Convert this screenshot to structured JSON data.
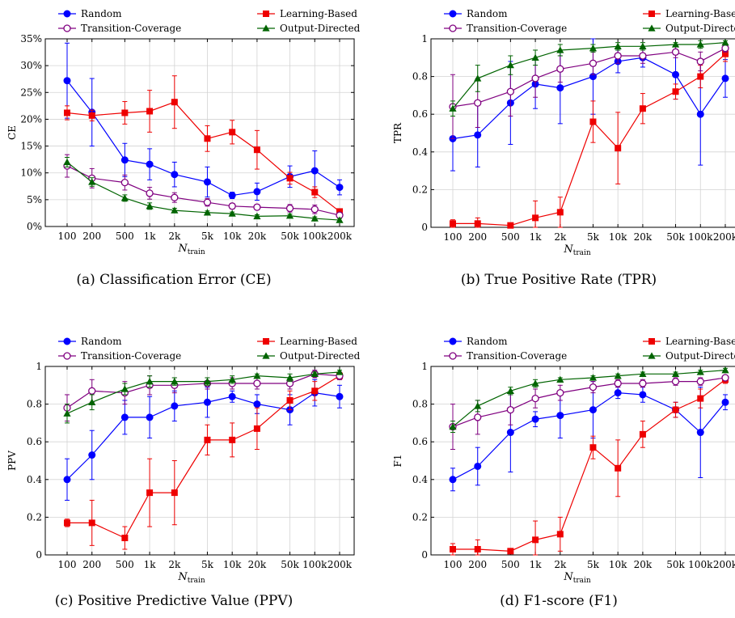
{
  "figure": {
    "x_axis_label_main": "N",
    "x_axis_label_sub": "train",
    "legend_labels": [
      "Random",
      "Learning-Based",
      "Transition-Coverage",
      "Output-Directed"
    ]
  },
  "chart_data": [
    {
      "type": "line",
      "panel": "a",
      "caption": "(a) Classification Error (CE)",
      "ylabel": "CE",
      "categories": [
        "100",
        "200",
        "500",
        "1k",
        "2k",
        "5k",
        "10k",
        "20k",
        "50k",
        "100k",
        "200k"
      ],
      "x": [
        100,
        200,
        500,
        1000,
        2000,
        5000,
        10000,
        20000,
        50000,
        100000,
        200000
      ],
      "x_scale": "log",
      "ylim": [
        0,
        35
      ],
      "ytick_labels": [
        "0%",
        "5%",
        "10%",
        "15%",
        "20%",
        "25%",
        "30%",
        "35%"
      ],
      "yticks": [
        0,
        5,
        10,
        15,
        20,
        25,
        30,
        35
      ],
      "grid": true,
      "legend_position": "above",
      "series": [
        {
          "name": "Random",
          "color": "#0000ff",
          "marker": "circle",
          "values": [
            27.2,
            21.3,
            12.4,
            11.6,
            9.7,
            8.3,
            5.8,
            6.5,
            9.3,
            10.4,
            7.3
          ],
          "error": [
            7.0,
            6.3,
            3.1,
            2.9,
            2.3,
            2.8,
            0.6,
            1.6,
            2.0,
            3.7,
            1.4
          ]
        },
        {
          "name": "Learning-Based",
          "color": "#ee0000",
          "marker": "square",
          "values": [
            21.2,
            20.7,
            21.2,
            21.5,
            23.2,
            16.4,
            17.6,
            14.3,
            9.0,
            6.4,
            2.8
          ],
          "error": [
            1.3,
            1.0,
            2.1,
            3.9,
            4.9,
            2.4,
            2.2,
            3.6,
            1.1,
            1.0,
            0.5
          ]
        },
        {
          "name": "Transition-Coverage",
          "color": "#800080",
          "marker": "open-circle",
          "values": [
            11.3,
            9.0,
            8.2,
            6.2,
            5.4,
            4.5,
            3.8,
            3.6,
            3.4,
            3.2,
            2.1
          ],
          "error": [
            2.1,
            1.8,
            1.4,
            1.1,
            0.9,
            0.7,
            0.5,
            0.5,
            0.7,
            0.8,
            0.4
          ]
        },
        {
          "name": "Output-Directed",
          "color": "#006400",
          "marker": "triangle",
          "values": [
            12.0,
            8.3,
            5.3,
            3.8,
            3.0,
            2.6,
            2.4,
            1.9,
            2.0,
            1.5,
            1.2
          ],
          "error": [
            0.9,
            0.8,
            0.6,
            0.6,
            0.4,
            0.3,
            0.3,
            0.3,
            0.3,
            0.3,
            0.3
          ]
        }
      ]
    },
    {
      "type": "line",
      "panel": "b",
      "caption": "(b) True Positive Rate (TPR)",
      "ylabel": "TPR",
      "categories": [
        "100",
        "200",
        "500",
        "1k",
        "2k",
        "5k",
        "10k",
        "20k",
        "50k",
        "100k",
        "200k"
      ],
      "x": [
        100,
        200,
        500,
        1000,
        2000,
        5000,
        10000,
        20000,
        50000,
        100000,
        200000
      ],
      "x_scale": "log",
      "ylim": [
        0,
        1
      ],
      "ytick_labels": [
        "0",
        "0.2",
        "0.4",
        "0.6",
        "0.8",
        "1"
      ],
      "yticks": [
        0,
        0.2,
        0.4,
        0.6,
        0.8,
        1.0
      ],
      "grid": true,
      "legend_position": "above",
      "series": [
        {
          "name": "Random",
          "color": "#0000ff",
          "marker": "circle",
          "values": [
            0.47,
            0.49,
            0.66,
            0.76,
            0.74,
            0.8,
            0.88,
            0.9,
            0.81,
            0.6,
            0.79
          ],
          "error": [
            0.17,
            0.17,
            0.22,
            0.13,
            0.19,
            0.2,
            0.06,
            0.05,
            0.13,
            0.27,
            0.1
          ]
        },
        {
          "name": "Learning-Based",
          "color": "#ee0000",
          "marker": "square",
          "values": [
            0.02,
            0.02,
            0.01,
            0.05,
            0.08,
            0.56,
            0.42,
            0.63,
            0.72,
            0.8,
            0.92
          ],
          "error": [
            0.02,
            0.03,
            0.01,
            0.09,
            0.08,
            0.11,
            0.19,
            0.08,
            0.04,
            0.06,
            0.04
          ]
        },
        {
          "name": "Transition-Coverage",
          "color": "#800080",
          "marker": "open-circle",
          "values": [
            0.64,
            0.66,
            0.72,
            0.79,
            0.84,
            0.87,
            0.91,
            0.91,
            0.93,
            0.88,
            0.95
          ],
          "error": [
            0.17,
            0.13,
            0.13,
            0.1,
            0.07,
            0.06,
            0.04,
            0.04,
            0.03,
            0.05,
            0.02
          ]
        },
        {
          "name": "Output-Directed",
          "color": "#006400",
          "marker": "triangle",
          "values": [
            0.63,
            0.79,
            0.86,
            0.9,
            0.94,
            0.95,
            0.96,
            0.96,
            0.97,
            0.97,
            0.98
          ],
          "error": [
            0.04,
            0.07,
            0.05,
            0.04,
            0.03,
            0.02,
            0.02,
            0.02,
            0.01,
            0.02,
            0.01
          ]
        }
      ]
    },
    {
      "type": "line",
      "panel": "c",
      "caption": "(c) Positive Predictive Value (PPV)",
      "ylabel": "PPV",
      "categories": [
        "100",
        "200",
        "500",
        "1k",
        "2k",
        "5k",
        "10k",
        "20k",
        "50k",
        "100k",
        "200k"
      ],
      "x": [
        100,
        200,
        500,
        1000,
        2000,
        5000,
        10000,
        20000,
        50000,
        100000,
        200000
      ],
      "x_scale": "log",
      "ylim": [
        0,
        1
      ],
      "ytick_labels": [
        "0",
        "0.2",
        "0.4",
        "0.6",
        "0.8",
        "1"
      ],
      "yticks": [
        0,
        0.2,
        0.4,
        0.6,
        0.8,
        1.0
      ],
      "grid": true,
      "legend_position": "above",
      "series": [
        {
          "name": "Random",
          "color": "#0000ff",
          "marker": "circle",
          "values": [
            0.4,
            0.53,
            0.73,
            0.73,
            0.79,
            0.81,
            0.84,
            0.8,
            0.77,
            0.86,
            0.84
          ],
          "error": [
            0.11,
            0.13,
            0.09,
            0.11,
            0.08,
            0.08,
            0.03,
            0.05,
            0.08,
            0.07,
            0.06
          ]
        },
        {
          "name": "Learning-Based",
          "color": "#ee0000",
          "marker": "square",
          "values": [
            0.17,
            0.17,
            0.09,
            0.33,
            0.33,
            0.61,
            0.61,
            0.67,
            0.82,
            0.87,
            0.95
          ],
          "error": [
            0.02,
            0.12,
            0.06,
            0.18,
            0.17,
            0.08,
            0.09,
            0.11,
            0.05,
            0.05,
            0.02
          ]
        },
        {
          "name": "Transition-Coverage",
          "color": "#800080",
          "marker": "open-circle",
          "values": [
            0.78,
            0.87,
            0.86,
            0.9,
            0.9,
            0.91,
            0.91,
            0.91,
            0.91,
            0.96,
            0.95
          ],
          "error": [
            0.07,
            0.06,
            0.06,
            0.05,
            0.04,
            0.03,
            0.03,
            0.03,
            0.03,
            0.02,
            0.02
          ]
        },
        {
          "name": "Output-Directed",
          "color": "#006400",
          "marker": "triangle",
          "values": [
            0.75,
            0.81,
            0.88,
            0.92,
            0.92,
            0.92,
            0.93,
            0.95,
            0.94,
            0.96,
            0.97
          ],
          "error": [
            0.05,
            0.04,
            0.03,
            0.03,
            0.02,
            0.02,
            0.02,
            0.01,
            0.02,
            0.01,
            0.01
          ]
        }
      ]
    },
    {
      "type": "line",
      "panel": "d",
      "caption": "(d) F1-score (F1)",
      "ylabel": "F1",
      "categories": [
        "100",
        "200",
        "500",
        "1k",
        "2k",
        "5k",
        "10k",
        "20k",
        "50k",
        "100k",
        "200k"
      ],
      "x": [
        100,
        200,
        500,
        1000,
        2000,
        5000,
        10000,
        20000,
        50000,
        100000,
        200000
      ],
      "x_scale": "log",
      "ylim": [
        0,
        1
      ],
      "ytick_labels": [
        "0",
        "0.2",
        "0.4",
        "0.6",
        "0.8",
        "1"
      ],
      "yticks": [
        0,
        0.2,
        0.4,
        0.6,
        0.8,
        1.0
      ],
      "grid": true,
      "legend_position": "above",
      "series": [
        {
          "name": "Random",
          "color": "#0000ff",
          "marker": "circle",
          "values": [
            0.4,
            0.47,
            0.65,
            0.72,
            0.74,
            0.77,
            0.86,
            0.85,
            0.77,
            0.65,
            0.81
          ],
          "error": [
            0.06,
            0.1,
            0.21,
            0.04,
            0.12,
            0.15,
            0.03,
            0.04,
            0.04,
            0.24,
            0.04
          ]
        },
        {
          "name": "Learning-Based",
          "color": "#ee0000",
          "marker": "square",
          "values": [
            0.03,
            0.03,
            0.02,
            0.08,
            0.11,
            0.57,
            0.46,
            0.64,
            0.77,
            0.83,
            0.93
          ],
          "error": [
            0.03,
            0.05,
            0.01,
            0.1,
            0.09,
            0.06,
            0.15,
            0.07,
            0.04,
            0.05,
            0.02
          ]
        },
        {
          "name": "Transition-Coverage",
          "color": "#800080",
          "marker": "open-circle",
          "values": [
            0.68,
            0.73,
            0.77,
            0.83,
            0.86,
            0.89,
            0.91,
            0.91,
            0.92,
            0.92,
            0.94
          ],
          "error": [
            0.12,
            0.09,
            0.08,
            0.05,
            0.04,
            0.03,
            0.02,
            0.02,
            0.02,
            0.02,
            0.01
          ]
        },
        {
          "name": "Output-Directed",
          "color": "#006400",
          "marker": "triangle",
          "values": [
            0.68,
            0.79,
            0.87,
            0.91,
            0.93,
            0.94,
            0.95,
            0.96,
            0.96,
            0.97,
            0.98
          ],
          "error": [
            0.03,
            0.03,
            0.02,
            0.02,
            0.01,
            0.01,
            0.01,
            0.01,
            0.01,
            0.01,
            0.01
          ]
        }
      ]
    }
  ]
}
